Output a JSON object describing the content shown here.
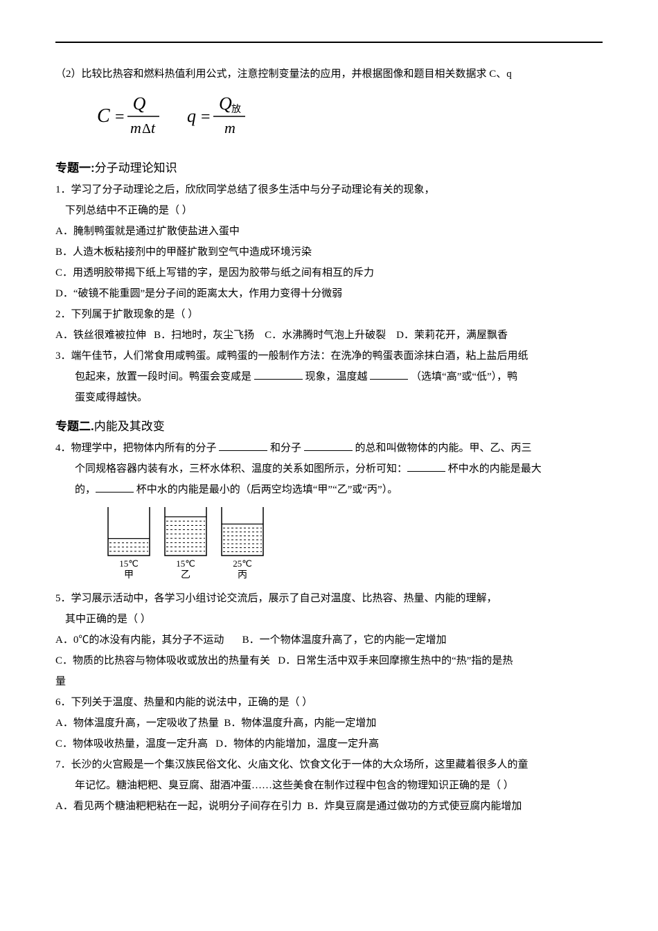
{
  "intro_line": "（2）比较比热容和燃料热值利用公式，注意控制变量法的应用，并根据图像和题目相关数据求 C、q",
  "formula": {
    "c_left": "C",
    "c_eq": "=",
    "c_num": "Q",
    "c_den_m": "m",
    "c_den_dt": "Δt",
    "q_left": "q",
    "q_eq": "=",
    "q_num_Q": "Q",
    "q_num_sub": "放",
    "q_den": "m"
  },
  "section1": {
    "title_bold": "专题一:",
    "title_rest": "分子动理论知识",
    "q1_line1": "1．学习了分子动理论之后，欣欣同学总结了很多生活中与分子动理论有关的现象，",
    "q1_line2": "下列总结中不正确的是（     ）",
    "q1_a": "A．腌制鸭蛋就是通过扩散使盐进入蛋中",
    "q1_b": "B．人造木板粘接剂中的甲醛扩散到空气中造成环境污染",
    "q1_c": "C．用透明胶带揭下纸上写错的字，是因为胶带与纸之间有相互的斥力",
    "q1_d": "D．“破镜不能重圆”是分子间的距离太大，作用力变得十分微弱",
    "q2_stem": "2．下列属于扩散现象的是（      ）",
    "q2_a": "A．铁丝很难被拉伸",
    "q2_b": "B．扫地时，灰尘飞扬",
    "q2_c": "C．水沸腾时气泡上升破裂",
    "q2_d": "D．茉莉花开，满屋飘香",
    "q3_l1_a": "3．端午佳节，人们常食用咸鸭蛋。咸鸭蛋的一般制作方法：在洗净的鸭蛋表面涂抹白酒，粘上盐后用纸",
    "q3_l2_a": "包起来，放置一段时间。鸭蛋会变咸是 ",
    "q3_l2_b": "现象，温度越 ",
    "q3_l2_c": "（选填“高”或“低”），鸭",
    "q3_l3": "蛋变咸得越快。"
  },
  "section2": {
    "title_bold": "专题二.",
    "title_rest": "内能及其改变",
    "q4_l1_a": "4．物理学中，把物体内所有的分子 ",
    "q4_l1_b": "和分子 ",
    "q4_l1_c": "的总和叫做物体的内能。甲、乙、丙三",
    "q4_l2_a": "个同规格容器内装有水，三杯水体积、温度的关系如图所示，分析可知：",
    "q4_l2_b": "杯中水的内能是最大",
    "q4_l3_a": "的，",
    "q4_l3_b": "杯中水的内能是最小的（后两空均选填“甲”“乙”或“丙”）。",
    "fig": {
      "cup_labels": [
        "15℃",
        "15℃",
        "25℃"
      ],
      "cup_names": [
        "甲",
        "乙",
        "丙"
      ],
      "water_heights": [
        0.35,
        0.8,
        0.65
      ],
      "cup_width": 60,
      "cup_height": 70,
      "stroke": "#000000",
      "water_fill": "none",
      "water_dash": "3,3"
    },
    "q5_l1": "5．学习展示活动中，各学习小组讨论交流后，展示了自己对温度、比热容、热量、内能的理解，",
    "q5_l2": "其中正确的是（     ）",
    "q5_a": "A．0℃的冰没有内能，其分子不运动",
    "q5_b": "B．一个物体温度升高了，它的内能一定增加",
    "q5_c": "C．物质的比热容与物体吸收或放出的热量有关",
    "q5_d": "D．日常生活中双手来回摩擦生热中的“热”指的是热",
    "q5_d2": "量",
    "q6_stem": "6．下列关于温度、热量和内能的说法中，正确的是（     ）",
    "q6_a": "A．物体温度升高，一定吸收了热量",
    "q6_b": "B．物体温度升高，内能一定增加",
    "q6_c": "C．物体吸收热量，温度一定升高",
    "q6_d": "D．物体的内能增加，温度一定升高",
    "q7_l1": "7．长沙的火宫殿是一个集汉族民俗文化、火庙文化、饮食文化于一体的大众场所，这里藏着很多人的童",
    "q7_l2": "年记忆。糖油粑粑、臭豆腐、甜酒冲蛋……这些美食在制作过程中包含的物理知识正确的是（      ）",
    "q7_a": "A．看见两个糖油粑粑粘在一起，说明分子间存在引力",
    "q7_b": "B．炸臭豆腐是通过做功的方式使豆腐内能增加"
  },
  "blank_widths": {
    "q3_b1": 70,
    "q3_b2": 55,
    "q4_b1": 70,
    "q4_b2": 70,
    "q4_b3": 55,
    "q4_b4": 55
  }
}
